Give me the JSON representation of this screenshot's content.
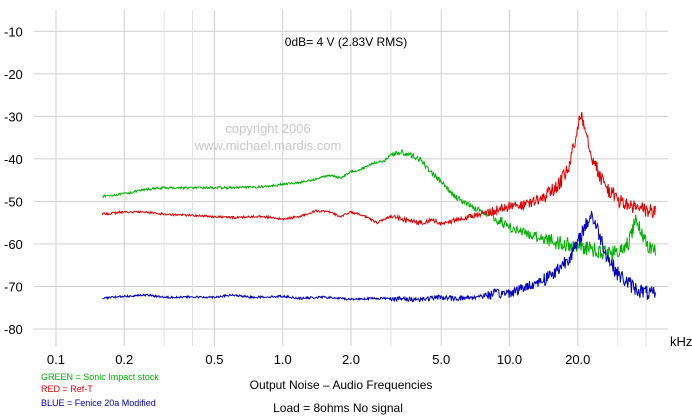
{
  "chart_data": {
    "type": "line",
    "annotation": "0dB= 4 V (2.83V RMS)",
    "watermark": [
      "copyright 2006",
      "www.michael.mardis.com"
    ],
    "xlabel": "Output Noise – Audio Frequencies",
    "xunit": "kHz",
    "subcaption": "Load = 8ohms  No signal",
    "x_scale": "log",
    "xlim": [
      0.08,
      50
    ],
    "ylim": [
      -84,
      -5
    ],
    "grid": true,
    "x_ticks": [
      {
        "value": 0.1,
        "label": "0.1"
      },
      {
        "value": 0.2,
        "label": "0.2"
      },
      {
        "value": 0.5,
        "label": "0.5"
      },
      {
        "value": 1.0,
        "label": "1.0"
      },
      {
        "value": 2.0,
        "label": "2.0"
      },
      {
        "value": 5.0,
        "label": "5.0"
      },
      {
        "value": 10.0,
        "label": "10.0"
      },
      {
        "value": 20.0,
        "label": "20.0"
      }
    ],
    "x_minor_grid": [
      0.3,
      0.4,
      3.0,
      30.0,
      40.0
    ],
    "y_ticks": [
      {
        "value": -10,
        "label": "-10"
      },
      {
        "value": -20,
        "label": "-20"
      },
      {
        "value": -30,
        "label": "-30"
      },
      {
        "value": -40,
        "label": "-40"
      },
      {
        "value": -50,
        "label": "-50"
      },
      {
        "value": -60,
        "label": "-60"
      },
      {
        "value": -70,
        "label": "-70"
      },
      {
        "value": -80,
        "label": "-80"
      }
    ],
    "series": [
      {
        "name": "GREEN = Sonic Impact stock",
        "color": "#00b000",
        "x": [
          0.16,
          0.2,
          0.25,
          0.3,
          0.4,
          0.5,
          0.6,
          0.8,
          1.0,
          1.2,
          1.4,
          1.6,
          1.8,
          2.0,
          2.2,
          2.5,
          2.8,
          3.0,
          3.3,
          3.6,
          4.0,
          4.5,
          5.0,
          5.5,
          6.0,
          7.0,
          8.0,
          9.0,
          10.0,
          12.0,
          14.0,
          16.0,
          18.0,
          20.0,
          22.0,
          24.0,
          26.0,
          28.0,
          30.0,
          32.0,
          34.0,
          36.0,
          38.0,
          40.0,
          44.0
        ],
        "y": [
          -48.8,
          -48.2,
          -47.2,
          -46.8,
          -46.8,
          -46.8,
          -46.8,
          -46.6,
          -46.0,
          -45.5,
          -44.8,
          -43.8,
          -44.5,
          -43.0,
          -42.5,
          -41.0,
          -40.5,
          -39.0,
          -38.4,
          -39.0,
          -40.0,
          -43.0,
          -45.5,
          -48.0,
          -49.5,
          -51.5,
          -53.0,
          -54.5,
          -56.0,
          -57.8,
          -58.5,
          -59.5,
          -60.2,
          -60.5,
          -61.0,
          -61.5,
          -61.8,
          -62.0,
          -62.0,
          -61.5,
          -59.0,
          -54.0,
          -57.0,
          -60.0,
          -61.5
        ]
      },
      {
        "name": "RED = Ref-T",
        "color": "#e00000",
        "x": [
          0.16,
          0.2,
          0.25,
          0.3,
          0.4,
          0.5,
          0.6,
          0.8,
          1.0,
          1.2,
          1.4,
          1.6,
          1.8,
          2.0,
          2.3,
          2.6,
          3.0,
          3.5,
          4.0,
          4.5,
          5.0,
          6.0,
          7.0,
          8.0,
          10.0,
          12.0,
          14.0,
          16.0,
          18.0,
          19.5,
          20.5,
          21.5,
          23.0,
          25.0,
          27.0,
          30.0,
          33.0,
          36.0,
          40.0,
          44.0
        ],
        "y": [
          -53.0,
          -52.5,
          -52.5,
          -53.0,
          -53.3,
          -53.6,
          -53.8,
          -53.5,
          -54.2,
          -53.5,
          -52.2,
          -52.5,
          -53.5,
          -52.5,
          -53.5,
          -55.0,
          -53.5,
          -54.5,
          -55.0,
          -54.5,
          -55.2,
          -54.3,
          -53.3,
          -52.5,
          -51.2,
          -50.8,
          -49.0,
          -47.0,
          -43.0,
          -36.0,
          -29.0,
          -32.0,
          -39.0,
          -44.0,
          -47.0,
          -49.5,
          -51.0,
          -51.5,
          -52.0,
          -52.5
        ]
      },
      {
        "name": "BLUE = Fenice 20a Modified",
        "color": "#0000c0",
        "x": [
          0.16,
          0.2,
          0.25,
          0.3,
          0.4,
          0.5,
          0.6,
          0.7,
          0.8,
          1.0,
          1.2,
          1.5,
          2.0,
          2.5,
          3.0,
          3.5,
          4.0,
          4.5,
          5.0,
          5.5,
          6.0,
          7.0,
          8.0,
          10.0,
          12.0,
          14.0,
          16.0,
          18.0,
          19.0,
          20.0,
          21.0,
          22.0,
          23.0,
          25.0,
          27.0,
          30.0,
          33.0,
          36.0,
          40.0,
          44.0
        ],
        "y": [
          -72.8,
          -72.3,
          -72.0,
          -72.5,
          -72.5,
          -72.5,
          -72.0,
          -72.5,
          -72.5,
          -72.3,
          -72.8,
          -72.5,
          -73.0,
          -72.8,
          -72.8,
          -73.0,
          -73.0,
          -72.8,
          -72.5,
          -72.8,
          -72.8,
          -72.5,
          -72.0,
          -71.5,
          -70.0,
          -68.5,
          -66.5,
          -63.5,
          -62.0,
          -60.0,
          -57.0,
          -55.0,
          -53.0,
          -58.0,
          -63.0,
          -67.0,
          -69.0,
          -70.5,
          -71.5,
          -72.0
        ]
      }
    ]
  }
}
